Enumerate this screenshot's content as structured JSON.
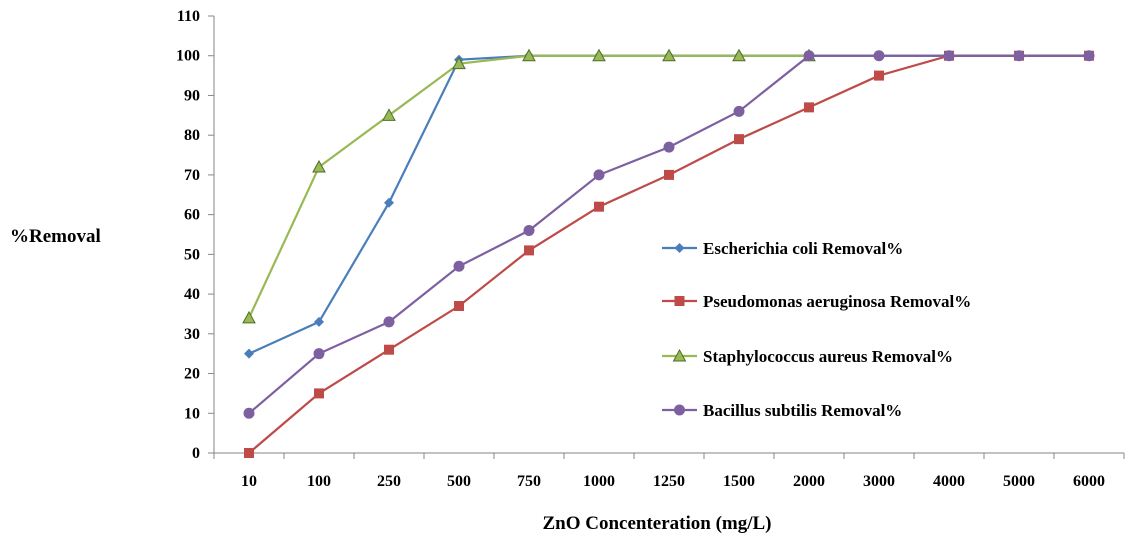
{
  "chart_data": {
    "type": "line",
    "title": "",
    "xlabel": "ZnO Concenteration (mg/L)",
    "ylabel": "%Removal",
    "ylim": [
      0,
      110
    ],
    "yticks": [
      "0",
      "10",
      "20",
      "30",
      "40",
      "50",
      "60",
      "70",
      "80",
      "90",
      "100",
      "110"
    ],
    "categories": [
      "10",
      "100",
      "250",
      "500",
      "750",
      "1000",
      "1250",
      "1500",
      "2000",
      "3000",
      "4000",
      "5000",
      "6000"
    ],
    "grid": false,
    "legend_position": "right",
    "series": [
      {
        "name": "Escherichia coli Removal%",
        "color": "#4a7ebb",
        "marker": "diamond",
        "values": [
          25,
          33,
          63,
          99,
          100,
          100,
          100,
          100,
          100,
          100,
          100,
          100,
          100
        ]
      },
      {
        "name": "Pseudomonas aeruginosa Removal%",
        "color": "#be4b48",
        "marker": "square",
        "values": [
          0,
          15,
          26,
          37,
          51,
          62,
          70,
          79,
          87,
          95,
          100,
          100,
          100
        ]
      },
      {
        "name": "Staphylococcus aureus Removal%",
        "color": "#98b954",
        "marker": "triangle",
        "values": [
          34,
          72,
          85,
          98,
          100,
          100,
          100,
          100,
          100,
          null,
          null,
          null,
          null
        ]
      },
      {
        "name": "Bacillus subtilis Removal%",
        "color": "#7d60a0",
        "marker": "circle",
        "values": [
          10,
          25,
          33,
          47,
          56,
          70,
          77,
          86,
          100,
          100,
          100,
          100,
          100
        ]
      }
    ]
  }
}
